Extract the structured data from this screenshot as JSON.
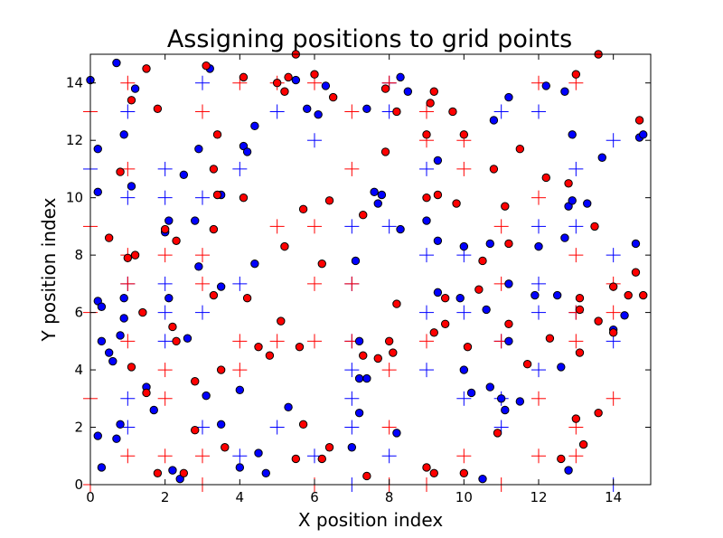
{
  "chart_data": {
    "type": "scatter",
    "title": "Assigning positions to grid points",
    "xlabel": "X position index",
    "ylabel": "Y position index",
    "xlim": [
      0,
      15
    ],
    "ylim": [
      0,
      15
    ],
    "x_ticks": [
      0,
      2,
      4,
      6,
      8,
      10,
      12,
      14
    ],
    "y_ticks": [
      0,
      2,
      4,
      6,
      8,
      10,
      12,
      14
    ],
    "grid": false,
    "legend": "none",
    "series": [
      {
        "marker": "circle",
        "color": "#0000ff",
        "points": [
          [
            0.0,
            14.1
          ],
          [
            0.7,
            14.7
          ],
          [
            1.2,
            13.8
          ],
          [
            3.2,
            14.5
          ],
          [
            5.5,
            14.1
          ],
          [
            6.3,
            13.9
          ],
          [
            5.8,
            13.1
          ],
          [
            6.1,
            12.9
          ],
          [
            7.4,
            13.1
          ],
          [
            8.3,
            14.2
          ],
          [
            8.5,
            13.7
          ],
          [
            11.2,
            13.5
          ],
          [
            12.2,
            13.9
          ],
          [
            12.7,
            13.7
          ],
          [
            10.8,
            12.7
          ],
          [
            12.9,
            12.2
          ],
          [
            0.9,
            12.2
          ],
          [
            0.2,
            11.7
          ],
          [
            4.1,
            11.8
          ],
          [
            4.2,
            11.6
          ],
          [
            4.4,
            12.5
          ],
          [
            2.9,
            11.7
          ],
          [
            9.3,
            11.3
          ],
          [
            13.7,
            11.4
          ],
          [
            14.7,
            12.1
          ],
          [
            14.8,
            12.2
          ],
          [
            0.2,
            10.2
          ],
          [
            1.1,
            10.4
          ],
          [
            2.5,
            10.8
          ],
          [
            3.5,
            10.1
          ],
          [
            7.6,
            10.2
          ],
          [
            7.8,
            10.1
          ],
          [
            7.7,
            9.8
          ],
          [
            8.3,
            8.9
          ],
          [
            9.0,
            9.2
          ],
          [
            10.0,
            8.3
          ],
          [
            10.7,
            8.4
          ],
          [
            12.0,
            8.3
          ],
          [
            12.7,
            8.6
          ],
          [
            12.8,
            9.7
          ],
          [
            12.9,
            9.9
          ],
          [
            13.3,
            9.8
          ],
          [
            14.6,
            8.4
          ],
          [
            2.1,
            9.2
          ],
          [
            2.8,
            9.2
          ],
          [
            2.0,
            8.8
          ],
          [
            0.2,
            6.4
          ],
          [
            0.3,
            6.2
          ],
          [
            0.9,
            6.5
          ],
          [
            0.9,
            5.8
          ],
          [
            0.3,
            5.0
          ],
          [
            0.5,
            4.6
          ],
          [
            0.6,
            4.3
          ],
          [
            0.8,
            5.2
          ],
          [
            2.1,
            6.5
          ],
          [
            2.9,
            7.6
          ],
          [
            3.5,
            6.9
          ],
          [
            4.4,
            7.7
          ],
          [
            7.1,
            7.8
          ],
          [
            7.2,
            5.0
          ],
          [
            7.2,
            3.7
          ],
          [
            7.4,
            3.7
          ],
          [
            9.3,
            6.7
          ],
          [
            9.3,
            8.5
          ],
          [
            9.9,
            6.5
          ],
          [
            10.6,
            6.1
          ],
          [
            11.2,
            5.0
          ],
          [
            11.2,
            7.0
          ],
          [
            11.9,
            6.6
          ],
          [
            12.5,
            6.6
          ],
          [
            14.0,
            5.4
          ],
          [
            14.3,
            5.9
          ],
          [
            2.6,
            5.1
          ],
          [
            1.5,
            3.4
          ],
          [
            1.7,
            2.6
          ],
          [
            3.1,
            3.1
          ],
          [
            3.5,
            2.1
          ],
          [
            4.0,
            3.3
          ],
          [
            5.3,
            2.7
          ],
          [
            7.2,
            2.5
          ],
          [
            8.2,
            1.8
          ],
          [
            10.0,
            4.0
          ],
          [
            10.2,
            3.2
          ],
          [
            10.7,
            3.4
          ],
          [
            11.0,
            3.0
          ],
          [
            11.1,
            2.6
          ],
          [
            11.5,
            2.9
          ],
          [
            12.6,
            4.1
          ],
          [
            0.8,
            2.1
          ],
          [
            0.2,
            1.7
          ],
          [
            0.7,
            1.6
          ],
          [
            0.3,
            0.6
          ],
          [
            2.2,
            0.5
          ],
          [
            2.4,
            0.2
          ],
          [
            4.0,
            0.6
          ],
          [
            4.5,
            1.1
          ],
          [
            4.7,
            0.4
          ],
          [
            7.0,
            1.3
          ],
          [
            10.5,
            0.2
          ],
          [
            12.8,
            0.5
          ]
        ]
      },
      {
        "marker": "circle",
        "color": "#ff0000",
        "points": [
          [
            1.1,
            13.4
          ],
          [
            1.5,
            14.5
          ],
          [
            1.8,
            13.1
          ],
          [
            3.1,
            14.6
          ],
          [
            4.1,
            14.2
          ],
          [
            5.0,
            14.0
          ],
          [
            5.2,
            13.7
          ],
          [
            5.3,
            14.2
          ],
          [
            5.5,
            15.0
          ],
          [
            6.0,
            14.3
          ],
          [
            6.5,
            13.5
          ],
          [
            7.9,
            13.8
          ],
          [
            8.2,
            13.0
          ],
          [
            9.1,
            13.3
          ],
          [
            9.2,
            13.7
          ],
          [
            9.7,
            13.0
          ],
          [
            13.0,
            14.3
          ],
          [
            13.6,
            15.0
          ],
          [
            14.7,
            12.7
          ],
          [
            10.0,
            12.2
          ],
          [
            9.0,
            12.2
          ],
          [
            3.4,
            12.2
          ],
          [
            0.8,
            10.9
          ],
          [
            3.3,
            11.0
          ],
          [
            3.4,
            10.1
          ],
          [
            4.1,
            10.0
          ],
          [
            7.9,
            11.6
          ],
          [
            11.5,
            11.7
          ],
          [
            12.2,
            10.7
          ],
          [
            12.8,
            10.5
          ],
          [
            10.8,
            11.0
          ],
          [
            9.0,
            10.0
          ],
          [
            9.3,
            10.1
          ],
          [
            9.8,
            9.8
          ],
          [
            11.1,
            9.7
          ],
          [
            6.4,
            9.9
          ],
          [
            5.7,
            9.6
          ],
          [
            7.3,
            9.4
          ],
          [
            2.0,
            8.9
          ],
          [
            2.3,
            8.5
          ],
          [
            3.3,
            8.9
          ],
          [
            5.2,
            8.3
          ],
          [
            6.2,
            7.7
          ],
          [
            0.5,
            8.6
          ],
          [
            1.0,
            7.9
          ],
          [
            1.2,
            8.0
          ],
          [
            10.5,
            7.8
          ],
          [
            11.2,
            8.4
          ],
          [
            13.5,
            9.0
          ],
          [
            1.4,
            6.0
          ],
          [
            2.2,
            5.5
          ],
          [
            2.3,
            5.0
          ],
          [
            3.3,
            6.6
          ],
          [
            4.2,
            6.5
          ],
          [
            5.1,
            5.7
          ],
          [
            4.5,
            4.8
          ],
          [
            4.8,
            4.5
          ],
          [
            5.6,
            4.8
          ],
          [
            7.3,
            4.5
          ],
          [
            7.7,
            4.4
          ],
          [
            8.0,
            5.0
          ],
          [
            8.1,
            4.6
          ],
          [
            8.2,
            6.3
          ],
          [
            9.2,
            5.3
          ],
          [
            9.5,
            5.6
          ],
          [
            9.5,
            6.5
          ],
          [
            10.1,
            4.8
          ],
          [
            10.4,
            6.8
          ],
          [
            11.2,
            5.6
          ],
          [
            11.7,
            4.2
          ],
          [
            12.3,
            5.1
          ],
          [
            13.1,
            6.5
          ],
          [
            13.1,
            6.1
          ],
          [
            13.1,
            4.6
          ],
          [
            13.6,
            5.7
          ],
          [
            14.0,
            6.9
          ],
          [
            14.0,
            5.3
          ],
          [
            14.4,
            6.6
          ],
          [
            14.6,
            7.4
          ],
          [
            14.8,
            6.6
          ],
          [
            1.1,
            4.1
          ],
          [
            1.5,
            3.2
          ],
          [
            2.8,
            3.6
          ],
          [
            3.5,
            4.0
          ],
          [
            2.8,
            1.9
          ],
          [
            3.6,
            1.3
          ],
          [
            5.7,
            2.1
          ],
          [
            6.2,
            0.9
          ],
          [
            6.4,
            1.3
          ],
          [
            5.5,
            0.9
          ],
          [
            7.4,
            0.3
          ],
          [
            9.0,
            0.6
          ],
          [
            9.2,
            0.4
          ],
          [
            10.0,
            0.4
          ],
          [
            10.9,
            1.8
          ],
          [
            12.6,
            0.9
          ],
          [
            13.0,
            2.3
          ],
          [
            13.2,
            1.4
          ],
          [
            13.6,
            2.5
          ],
          [
            1.8,
            0.4
          ],
          [
            2.5,
            0.4
          ]
        ]
      },
      {
        "marker": "plus",
        "color": "#0000ff",
        "points": [
          [
            3,
            14
          ],
          [
            1,
            13
          ],
          [
            6,
            12
          ],
          [
            8,
            13
          ],
          [
            11,
            13
          ],
          [
            12,
            13
          ],
          [
            14,
            12
          ],
          [
            2,
            11
          ],
          [
            4,
            11
          ],
          [
            7,
            9
          ],
          [
            1,
            10
          ],
          [
            2,
            10
          ],
          [
            3,
            10
          ],
          [
            8,
            9
          ],
          [
            12,
            9
          ],
          [
            9,
            8
          ],
          [
            10,
            8
          ],
          [
            13,
            9
          ],
          [
            14,
            8
          ],
          [
            2,
            7
          ],
          [
            4,
            7
          ],
          [
            7,
            7
          ],
          [
            12,
            7
          ],
          [
            1,
            7
          ],
          [
            1,
            3
          ],
          [
            2,
            6
          ],
          [
            3,
            6
          ],
          [
            9,
            6
          ],
          [
            10,
            6
          ],
          [
            12,
            6
          ],
          [
            13,
            6
          ],
          [
            2,
            5
          ],
          [
            7,
            5
          ],
          [
            11,
            5
          ],
          [
            14,
            5
          ],
          [
            7,
            4
          ],
          [
            9,
            4
          ],
          [
            12,
            4
          ],
          [
            7,
            3
          ],
          [
            10,
            3
          ],
          [
            1,
            2
          ],
          [
            3,
            2
          ],
          [
            5,
            2
          ],
          [
            7,
            2
          ],
          [
            8,
            1
          ],
          [
            11,
            2
          ],
          [
            4,
            1
          ],
          [
            6,
            1
          ],
          [
            7,
            0
          ],
          [
            14,
            0
          ],
          [
            9,
            11
          ],
          [
            13,
            11
          ],
          [
            11,
            3
          ],
          [
            8,
            14
          ],
          [
            0,
            11
          ],
          [
            5,
            13
          ]
        ]
      },
      {
        "marker": "plus",
        "color": "#ff0000",
        "points": [
          [
            1,
            14
          ],
          [
            4,
            14
          ],
          [
            5,
            14
          ],
          [
            6,
            14
          ],
          [
            8,
            14
          ],
          [
            9,
            13
          ],
          [
            12,
            14
          ],
          [
            13,
            14
          ],
          [
            0,
            13
          ],
          [
            3,
            13
          ],
          [
            7,
            13
          ],
          [
            9,
            12
          ],
          [
            10,
            12
          ],
          [
            1,
            11
          ],
          [
            7,
            11
          ],
          [
            10,
            11
          ],
          [
            12,
            10
          ],
          [
            11,
            9
          ],
          [
            5,
            9
          ],
          [
            6,
            9
          ],
          [
            0,
            9
          ],
          [
            2,
            8
          ],
          [
            3,
            8
          ],
          [
            6,
            7
          ],
          [
            7,
            7
          ],
          [
            13,
            8
          ],
          [
            1,
            8
          ],
          [
            1,
            7
          ],
          [
            3,
            7
          ],
          [
            11,
            7
          ],
          [
            14,
            7
          ],
          [
            13,
            6
          ],
          [
            14,
            6
          ],
          [
            0,
            6
          ],
          [
            1,
            5
          ],
          [
            4,
            5
          ],
          [
            5,
            5
          ],
          [
            6,
            5
          ],
          [
            7,
            5
          ],
          [
            9,
            5
          ],
          [
            11,
            5
          ],
          [
            13,
            5
          ],
          [
            2,
            4
          ],
          [
            4,
            4
          ],
          [
            8,
            4
          ],
          [
            0,
            3
          ],
          [
            2,
            3
          ],
          [
            12,
            3
          ],
          [
            14,
            3
          ],
          [
            8,
            2
          ],
          [
            13,
            2
          ],
          [
            1,
            1
          ],
          [
            2,
            1
          ],
          [
            3,
            1
          ],
          [
            10,
            1
          ],
          [
            12,
            1
          ],
          [
            0,
            0
          ],
          [
            3,
            0
          ],
          [
            6,
            0
          ],
          [
            8,
            0
          ],
          [
            9,
            0
          ],
          [
            13,
            1
          ],
          [
            11,
            0
          ]
        ]
      }
    ]
  }
}
